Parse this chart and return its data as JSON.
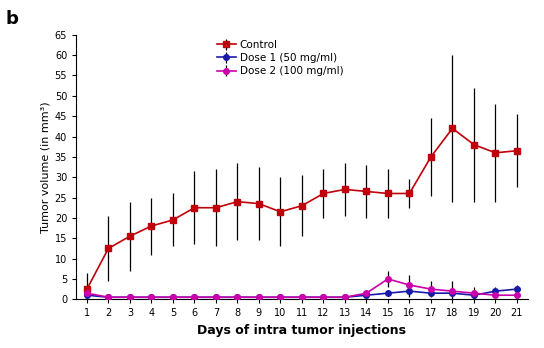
{
  "days": [
    1,
    2,
    3,
    4,
    5,
    6,
    7,
    8,
    9,
    10,
    11,
    12,
    13,
    14,
    15,
    16,
    17,
    18,
    19,
    20,
    21
  ],
  "control_mean": [
    2.5,
    12.5,
    15.5,
    18.0,
    19.5,
    22.5,
    22.5,
    24.0,
    23.5,
    21.5,
    23.0,
    26.0,
    27.0,
    26.5,
    26.0,
    26.0,
    35.0,
    42.0,
    38.0,
    36.0,
    36.5
  ],
  "control_err": [
    4.0,
    8.0,
    8.5,
    7.0,
    6.5,
    9.0,
    9.5,
    9.5,
    9.0,
    8.5,
    7.5,
    6.0,
    6.5,
    6.5,
    6.0,
    3.5,
    9.5,
    18.0,
    14.0,
    12.0,
    9.0
  ],
  "dose1_mean": [
    1.0,
    0.5,
    0.5,
    0.5,
    0.5,
    0.5,
    0.5,
    0.5,
    0.5,
    0.5,
    0.5,
    0.5,
    0.5,
    1.0,
    1.5,
    2.0,
    1.5,
    1.5,
    1.0,
    2.0,
    2.5
  ],
  "dose1_err": [
    0.3,
    0.3,
    0.3,
    0.3,
    0.3,
    0.3,
    0.3,
    0.3,
    0.3,
    0.3,
    0.3,
    0.3,
    0.3,
    0.5,
    0.5,
    1.5,
    0.5,
    0.5,
    0.5,
    1.0,
    1.0
  ],
  "dose2_mean": [
    1.5,
    0.5,
    0.5,
    0.5,
    0.5,
    0.5,
    0.5,
    0.5,
    0.5,
    0.5,
    0.5,
    0.5,
    0.5,
    1.5,
    5.0,
    3.5,
    2.5,
    2.0,
    1.5,
    1.0,
    1.0
  ],
  "dose2_err": [
    0.3,
    0.3,
    0.3,
    0.3,
    0.3,
    0.3,
    0.3,
    0.3,
    0.3,
    0.3,
    0.3,
    0.3,
    0.3,
    0.5,
    2.0,
    2.5,
    2.0,
    2.5,
    1.5,
    0.5,
    0.5
  ],
  "control_color": "#c0000b",
  "dose1_color": "#1a1aaa",
  "dose2_color": "#cc00aa",
  "xlabel": "Days of intra tumor injections",
  "ylabel": "Tumor volume (in mm³)",
  "ylim": [
    0,
    65
  ],
  "yticks": [
    0,
    5,
    10,
    15,
    20,
    25,
    30,
    35,
    40,
    45,
    50,
    55,
    60,
    65
  ],
  "panel_label": "b",
  "legend_labels": [
    "Control",
    "Dose 1 (50 mg/ml)",
    "Dose 2 (100 mg/ml)"
  ],
  "bg_color": "#ffffff"
}
